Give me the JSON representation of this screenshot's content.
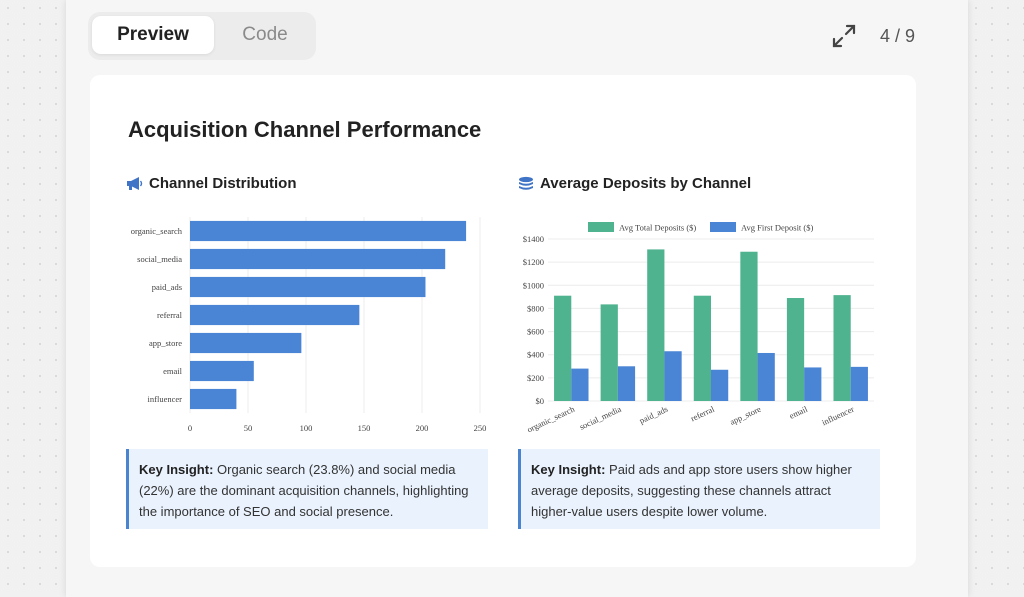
{
  "tabs": [
    {
      "label": "Preview",
      "active": true
    },
    {
      "label": "Code",
      "active": false
    }
  ],
  "toolbar": {
    "expand_icon": "expand-arrows-icon",
    "page_indicator": "4 / 9"
  },
  "card": {
    "title": "Acquisition Channel Performance"
  },
  "sections": {
    "left": {
      "title": "Channel Distribution",
      "icon": "megaphone-icon"
    },
    "right": {
      "title": "Average Deposits by Channel",
      "icon": "coins-icon"
    }
  },
  "insights": {
    "left": {
      "label": "Key Insight:",
      "text": "Organic search (23.8%) and social media (22%) are the dominant acquisition channels, highlighting the importance of SEO and social presence."
    },
    "right": {
      "label": "Key Insight:",
      "text": "Paid ads and app store users show higher average deposits, suggesting these channels attract higher-value users despite lower volume."
    }
  },
  "colors": {
    "blue": "#4a84d4",
    "green": "#4fb38f",
    "insight_bg": "#e9f2fd",
    "insight_border": "#4a84cf"
  },
  "chart_data": [
    {
      "type": "bar",
      "orientation": "horizontal",
      "categories": [
        "organic_search",
        "social_media",
        "paid_ads",
        "referral",
        "app_store",
        "email",
        "influencer"
      ],
      "values": [
        238,
        220,
        203,
        146,
        96,
        55,
        40
      ],
      "xlim": [
        0,
        250
      ],
      "xticks": [
        0,
        50,
        100,
        150,
        200,
        250
      ],
      "grid": true
    },
    {
      "type": "bar",
      "categories": [
        "organic_search",
        "social_media",
        "paid_ads",
        "referral",
        "app_store",
        "email",
        "influencer"
      ],
      "series": [
        {
          "name": "Avg Total Deposits ($)",
          "values": [
            910,
            835,
            1310,
            910,
            1290,
            890,
            915
          ],
          "color": "#4fb38f"
        },
        {
          "name": "Avg First Deposit ($)",
          "values": [
            280,
            300,
            430,
            270,
            415,
            290,
            295
          ],
          "color": "#4a84d4"
        }
      ],
      "ylim": [
        0,
        1400
      ],
      "yticks": [
        "$0",
        "$200",
        "$400",
        "$600",
        "$800",
        "$1000",
        "$1200",
        "$1400"
      ],
      "legend": "top",
      "grid": true
    }
  ]
}
